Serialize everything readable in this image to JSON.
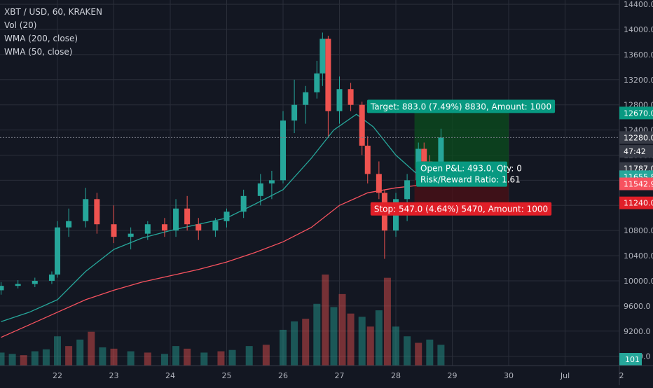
{
  "chart_data": {
    "type": "candlestick",
    "title": "XBT / USD, 60, KRAKEN",
    "indicators": [
      "Vol (20)",
      "WMA (200, close)",
      "WMA (50, close)"
    ],
    "yaxis": {
      "side": "right",
      "ylim": [
        8800,
        14450
      ],
      "ticks": [
        "14400.0",
        "14000.0",
        "13600.0",
        "13200.0",
        "12800.0",
        "12400.0",
        "12000.0",
        "11600.0",
        "11200.0",
        "10800.0",
        "10400.0",
        "10000.0",
        "9600.0",
        "9200.0",
        "8800.0"
      ],
      "tick_values": [
        14400,
        14000,
        13600,
        13200,
        12800,
        12400,
        12000,
        11600,
        11200,
        10800,
        10400,
        10000,
        9600,
        9200,
        8800
      ]
    },
    "xaxis": {
      "ticks": [
        "22",
        "23",
        "24",
        "25",
        "26",
        "27",
        "28",
        "29",
        "30",
        "Jul",
        "2"
      ],
      "tick_days": [
        22,
        23,
        24,
        25,
        26,
        27,
        28,
        29,
        30,
        31,
        32
      ],
      "xlim_days": [
        21.0,
        32.0
      ]
    },
    "price_labels": [
      {
        "text": "12670.0",
        "value": 12670,
        "color": "#089981"
      },
      {
        "text": "12280.0",
        "value": 12280,
        "color": "#363a45"
      },
      {
        "text": "47:42",
        "value": 12060,
        "color": "#363a45"
      },
      {
        "text": "11787.0",
        "value": 11787,
        "color": "#363a45"
      },
      {
        "text": "11655.8",
        "value": 11655.8,
        "color": "#26a69a"
      },
      {
        "text": "11542.9",
        "value": 11542.9,
        "color": "#f7525f"
      },
      {
        "text": "11240.0",
        "value": 11240,
        "color": "#e01f28"
      }
    ],
    "volume_label": "101",
    "position": {
      "entry": 11787,
      "target": 12670,
      "stop": 11240,
      "start_day": 28.33,
      "end_day": 30.0,
      "target_label": "Target: 883.0 (7.49%) 8830, Amount: 1000",
      "stop_label": "Stop: 547.0 (4.64%) 5470, Amount: 1000",
      "pnl_label_1": "Open P&L: 493.0, Qty: 0",
      "pnl_label_2": "Risk/Reward Ratio: 1.61"
    },
    "series": [
      {
        "name": "XBT / USD",
        "kind": "candles",
        "points": [
          {
            "day": 21.0,
            "o": 9850,
            "h": 9980,
            "l": 9780,
            "c": 9920
          },
          {
            "day": 21.3,
            "o": 9920,
            "h": 10010,
            "l": 9880,
            "c": 9950
          },
          {
            "day": 21.6,
            "o": 9950,
            "h": 10050,
            "l": 9900,
            "c": 10000
          },
          {
            "day": 21.9,
            "o": 10000,
            "h": 10150,
            "l": 9950,
            "c": 10100
          },
          {
            "day": 22.0,
            "o": 10100,
            "h": 10950,
            "l": 10050,
            "c": 10850
          },
          {
            "day": 22.2,
            "o": 10850,
            "h": 11150,
            "l": 10700,
            "c": 10950
          },
          {
            "day": 22.5,
            "o": 10950,
            "h": 11480,
            "l": 10850,
            "c": 11300
          },
          {
            "day": 22.7,
            "o": 11300,
            "h": 11400,
            "l": 10750,
            "c": 10900
          },
          {
            "day": 23.0,
            "o": 10900,
            "h": 11200,
            "l": 10600,
            "c": 10700
          },
          {
            "day": 23.3,
            "o": 10700,
            "h": 10850,
            "l": 10500,
            "c": 10750
          },
          {
            "day": 23.6,
            "o": 10750,
            "h": 10950,
            "l": 10650,
            "c": 10900
          },
          {
            "day": 23.9,
            "o": 10900,
            "h": 11000,
            "l": 10700,
            "c": 10800
          },
          {
            "day": 24.1,
            "o": 10800,
            "h": 11300,
            "l": 10700,
            "c": 11150
          },
          {
            "day": 24.3,
            "o": 11150,
            "h": 11350,
            "l": 10800,
            "c": 10900
          },
          {
            "day": 24.5,
            "o": 10900,
            "h": 11000,
            "l": 10650,
            "c": 10800
          },
          {
            "day": 24.8,
            "o": 10800,
            "h": 11000,
            "l": 10700,
            "c": 10950
          },
          {
            "day": 25.0,
            "o": 10950,
            "h": 11150,
            "l": 10850,
            "c": 11100
          },
          {
            "day": 25.3,
            "o": 11100,
            "h": 11450,
            "l": 11000,
            "c": 11350
          },
          {
            "day": 25.6,
            "o": 11350,
            "h": 11700,
            "l": 11200,
            "c": 11550
          },
          {
            "day": 25.8,
            "o": 11550,
            "h": 11750,
            "l": 11300,
            "c": 11600
          },
          {
            "day": 26.0,
            "o": 11600,
            "h": 12700,
            "l": 11550,
            "c": 12550
          },
          {
            "day": 26.2,
            "o": 12550,
            "h": 13200,
            "l": 12350,
            "c": 12800
          },
          {
            "day": 26.4,
            "o": 12800,
            "h": 13100,
            "l": 12500,
            "c": 13000
          },
          {
            "day": 26.6,
            "o": 13000,
            "h": 13500,
            "l": 12900,
            "c": 13300
          },
          {
            "day": 26.7,
            "o": 13300,
            "h": 13950,
            "l": 13100,
            "c": 13850
          },
          {
            "day": 26.8,
            "o": 13850,
            "h": 13900,
            "l": 12300,
            "c": 12700
          },
          {
            "day": 27.0,
            "o": 12700,
            "h": 13250,
            "l": 12500,
            "c": 13050
          },
          {
            "day": 27.2,
            "o": 13050,
            "h": 13150,
            "l": 12700,
            "c": 12800
          },
          {
            "day": 27.4,
            "o": 12800,
            "h": 12850,
            "l": 12000,
            "c": 12150
          },
          {
            "day": 27.5,
            "o": 12150,
            "h": 12300,
            "l": 11550,
            "c": 11700
          },
          {
            "day": 27.7,
            "o": 11700,
            "h": 11900,
            "l": 11300,
            "c": 11400
          },
          {
            "day": 27.8,
            "o": 11400,
            "h": 11450,
            "l": 10350,
            "c": 10800
          },
          {
            "day": 28.0,
            "o": 10800,
            "h": 11400,
            "l": 10700,
            "c": 11300
          },
          {
            "day": 28.2,
            "o": 11300,
            "h": 11700,
            "l": 10950,
            "c": 11600
          },
          {
            "day": 28.4,
            "o": 11600,
            "h": 12200,
            "l": 11500,
            "c": 12100
          },
          {
            "day": 28.5,
            "o": 12100,
            "h": 12200,
            "l": 11700,
            "c": 11900
          },
          {
            "day": 28.6,
            "o": 11900,
            "h": 12000,
            "l": 11650,
            "c": 11800
          },
          {
            "day": 28.8,
            "o": 11800,
            "h": 12420,
            "l": 11750,
            "c": 12280
          }
        ]
      },
      {
        "name": "WMA (50, close)",
        "kind": "line",
        "color": "#26a69a",
        "points": [
          [
            21.0,
            9350
          ],
          [
            21.5,
            9500
          ],
          [
            22.0,
            9700
          ],
          [
            22.5,
            10150
          ],
          [
            23.0,
            10500
          ],
          [
            23.5,
            10680
          ],
          [
            24.0,
            10800
          ],
          [
            24.5,
            10900
          ],
          [
            25.0,
            11000
          ],
          [
            25.5,
            11220
          ],
          [
            26.0,
            11450
          ],
          [
            26.5,
            11950
          ],
          [
            26.9,
            12400
          ],
          [
            27.3,
            12650
          ],
          [
            27.6,
            12450
          ],
          [
            28.0,
            12000
          ],
          [
            28.4,
            11680
          ],
          [
            28.8,
            11660
          ]
        ]
      },
      {
        "name": "WMA (200, close)",
        "kind": "line",
        "color": "#f7525f",
        "points": [
          [
            21.0,
            9100
          ],
          [
            21.5,
            9300
          ],
          [
            22.0,
            9500
          ],
          [
            22.5,
            9700
          ],
          [
            23.0,
            9850
          ],
          [
            23.5,
            9980
          ],
          [
            24.0,
            10080
          ],
          [
            24.5,
            10180
          ],
          [
            25.0,
            10300
          ],
          [
            25.5,
            10450
          ],
          [
            26.0,
            10620
          ],
          [
            26.5,
            10850
          ],
          [
            27.0,
            11200
          ],
          [
            27.5,
            11400
          ],
          [
            28.0,
            11480
          ],
          [
            28.4,
            11520
          ],
          [
            28.8,
            11545
          ]
        ]
      }
    ],
    "volume": [
      {
        "day": 21.0,
        "v": 20,
        "up": true
      },
      {
        "day": 21.2,
        "v": 18,
        "up": true
      },
      {
        "day": 21.4,
        "v": 16,
        "up": false
      },
      {
        "day": 21.6,
        "v": 22,
        "up": true
      },
      {
        "day": 21.8,
        "v": 25,
        "up": true
      },
      {
        "day": 22.0,
        "v": 45,
        "up": true
      },
      {
        "day": 22.2,
        "v": 30,
        "up": false
      },
      {
        "day": 22.4,
        "v": 40,
        "up": true
      },
      {
        "day": 22.6,
        "v": 52,
        "up": false
      },
      {
        "day": 22.8,
        "v": 28,
        "up": true
      },
      {
        "day": 23.0,
        "v": 26,
        "up": false
      },
      {
        "day": 23.3,
        "v": 22,
        "up": true
      },
      {
        "day": 23.6,
        "v": 20,
        "up": false
      },
      {
        "day": 23.9,
        "v": 18,
        "up": true
      },
      {
        "day": 24.1,
        "v": 30,
        "up": true
      },
      {
        "day": 24.3,
        "v": 26,
        "up": false
      },
      {
        "day": 24.6,
        "v": 20,
        "up": true
      },
      {
        "day": 24.9,
        "v": 22,
        "up": false
      },
      {
        "day": 25.1,
        "v": 24,
        "up": true
      },
      {
        "day": 25.4,
        "v": 30,
        "up": true
      },
      {
        "day": 25.7,
        "v": 32,
        "up": false
      },
      {
        "day": 26.0,
        "v": 55,
        "up": true
      },
      {
        "day": 26.2,
        "v": 68,
        "up": true
      },
      {
        "day": 26.4,
        "v": 72,
        "up": false
      },
      {
        "day": 26.6,
        "v": 95,
        "up": true
      },
      {
        "day": 26.75,
        "v": 140,
        "up": false
      },
      {
        "day": 26.9,
        "v": 90,
        "up": true
      },
      {
        "day": 27.05,
        "v": 110,
        "up": false
      },
      {
        "day": 27.2,
        "v": 80,
        "up": false
      },
      {
        "day": 27.4,
        "v": 75,
        "up": true
      },
      {
        "day": 27.55,
        "v": 60,
        "up": false
      },
      {
        "day": 27.7,
        "v": 85,
        "up": true
      },
      {
        "day": 27.85,
        "v": 135,
        "up": false
      },
      {
        "day": 28.0,
        "v": 60,
        "up": true
      },
      {
        "day": 28.2,
        "v": 45,
        "up": true
      },
      {
        "day": 28.4,
        "v": 35,
        "up": false
      },
      {
        "day": 28.6,
        "v": 40,
        "up": true
      },
      {
        "day": 28.8,
        "v": 32,
        "up": true
      }
    ],
    "colors": {
      "background": "#131722",
      "up": "#26a69a",
      "down": "#ef5350",
      "grid": "#2a2e39",
      "axis_text": "#b2b5be",
      "target_zone": "#0b4a1e",
      "stop_zone": "#4a1016",
      "target_label": "#089981",
      "stop_label": "#e01f28"
    }
  }
}
